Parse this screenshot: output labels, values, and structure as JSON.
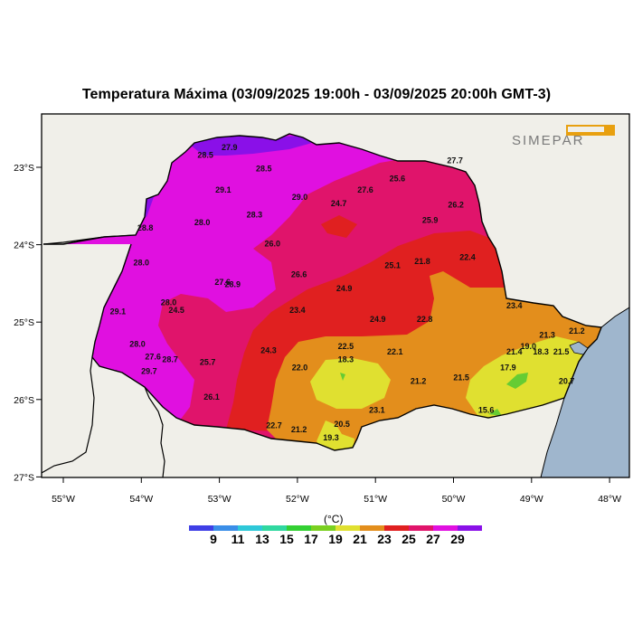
{
  "title": "Temperatura Máxima (03/09/2025 19:00h - 03/09/2025 20:00h GMT-3)",
  "logo_text": "SIMEPAR",
  "colors": {
    "land": "#f0efe9",
    "ocean": "#9fb6cd",
    "c_lt19": "#66cc33",
    "c_19_21": "#e0e030",
    "c_21_23": "#e38e1c",
    "c_23_25": "#e02020",
    "c_25_27": "#e0146b",
    "c_27_29": "#e010e0",
    "c_gt29": "#8a10e8"
  },
  "axes": {
    "lon_ticks": [
      "55°W",
      "54°W",
      "53°W",
      "52°W",
      "51°W",
      "50°W",
      "49°W",
      "48°W"
    ],
    "lat_ticks": [
      "23°S",
      "24°S",
      "25°S",
      "26°S",
      "27°S"
    ]
  },
  "legend": {
    "unit": "(°C)",
    "labels": [
      "9",
      "11",
      "13",
      "15",
      "17",
      "19",
      "21",
      "23",
      "25",
      "27",
      "29"
    ],
    "colors": [
      "#3f3fe6",
      "#3a8ee8",
      "#2ec8d8",
      "#30d8a0",
      "#33d033",
      "#7ad020",
      "#e0e030",
      "#e38e1c",
      "#e02020",
      "#e0146b",
      "#e010e0",
      "#8a10e8"
    ]
  },
  "stations": [
    {
      "value": "27.9",
      "lon": -52.87,
      "lat": -22.78
    },
    {
      "value": "28.5",
      "lon": -53.18,
      "lat": -22.88
    },
    {
      "value": "28.5",
      "lon": -52.43,
      "lat": -23.05
    },
    {
      "value": "27.7",
      "lon": -49.98,
      "lat": -22.95
    },
    {
      "value": "25.6",
      "lon": -50.72,
      "lat": -23.18
    },
    {
      "value": "29.1",
      "lon": -52.95,
      "lat": -23.33
    },
    {
      "value": "27.6",
      "lon": -51.13,
      "lat": -23.33
    },
    {
      "value": "29.0",
      "lon": -51.97,
      "lat": -23.42
    },
    {
      "value": "24.7",
      "lon": -51.47,
      "lat": -23.5
    },
    {
      "value": "26.2",
      "lon": -49.97,
      "lat": -23.52
    },
    {
      "value": "28.3",
      "lon": -52.55,
      "lat": -23.65
    },
    {
      "value": "28.0",
      "lon": -53.22,
      "lat": -23.75
    },
    {
      "value": "25.9",
      "lon": -50.3,
      "lat": -23.72
    },
    {
      "value": "28.8",
      "lon": -53.95,
      "lat": -23.82
    },
    {
      "value": "26.0",
      "lon": -52.32,
      "lat": -24.02
    },
    {
      "value": "28.0",
      "lon": -54.0,
      "lat": -24.27
    },
    {
      "value": "25.1",
      "lon": -50.78,
      "lat": -24.3
    },
    {
      "value": "21.8",
      "lon": -50.4,
      "lat": -24.25
    },
    {
      "value": "22.4",
      "lon": -49.82,
      "lat": -24.2
    },
    {
      "value": "26.6",
      "lon": -51.98,
      "lat": -24.42
    },
    {
      "value": "27.6",
      "lon": -52.96,
      "lat": -24.52
    },
    {
      "value": "28.9",
      "lon": -52.83,
      "lat": -24.55
    },
    {
      "value": "24.9",
      "lon": -51.4,
      "lat": -24.6
    },
    {
      "value": "28.0",
      "lon": -53.65,
      "lat": -24.78
    },
    {
      "value": "23.4",
      "lon": -52.0,
      "lat": -24.88
    },
    {
      "value": "24.5",
      "lon": -53.55,
      "lat": -24.88
    },
    {
      "value": "29.1",
      "lon": -54.3,
      "lat": -24.9
    },
    {
      "value": "23.4",
      "lon": -49.22,
      "lat": -24.82
    },
    {
      "value": "24.9",
      "lon": -50.97,
      "lat": -25.0
    },
    {
      "value": "22.8",
      "lon": -50.37,
      "lat": -25.0
    },
    {
      "value": "28.0",
      "lon": -54.05,
      "lat": -25.32
    },
    {
      "value": "22.5",
      "lon": -51.38,
      "lat": -25.35
    },
    {
      "value": "24.3",
      "lon": -52.37,
      "lat": -25.4
    },
    {
      "value": "22.1",
      "lon": -50.75,
      "lat": -25.42
    },
    {
      "value": "21.3",
      "lon": -48.8,
      "lat": -25.2
    },
    {
      "value": "21.2",
      "lon": -48.42,
      "lat": -25.15
    },
    {
      "value": "19.0",
      "lon": -49.04,
      "lat": -25.35
    },
    {
      "value": "21.4",
      "lon": -49.22,
      "lat": -25.42
    },
    {
      "value": "18.3",
      "lon": -48.88,
      "lat": -25.42
    },
    {
      "value": "21.5",
      "lon": -48.62,
      "lat": -25.42
    },
    {
      "value": "27.6",
      "lon": -53.85,
      "lat": -25.48
    },
    {
      "value": "28.7",
      "lon": -53.63,
      "lat": -25.52
    },
    {
      "value": "18.3",
      "lon": -51.38,
      "lat": -25.52
    },
    {
      "value": "25.7",
      "lon": -53.15,
      "lat": -25.55
    },
    {
      "value": "22.0",
      "lon": -51.97,
      "lat": -25.62
    },
    {
      "value": "29.7",
      "lon": -53.9,
      "lat": -25.67
    },
    {
      "value": "17.9",
      "lon": -49.3,
      "lat": -25.62
    },
    {
      "value": "21.5",
      "lon": -49.9,
      "lat": -25.75
    },
    {
      "value": "21.2",
      "lon": -50.45,
      "lat": -25.8
    },
    {
      "value": "20.7",
      "lon": -48.55,
      "lat": -25.8
    },
    {
      "value": "26.1",
      "lon": -53.1,
      "lat": -26.0
    },
    {
      "value": "23.1",
      "lon": -50.98,
      "lat": -26.17
    },
    {
      "value": "15.6",
      "lon": -49.58,
      "lat": -26.17
    },
    {
      "value": "22.7",
      "lon": -52.3,
      "lat": -26.37
    },
    {
      "value": "20.5",
      "lon": -51.43,
      "lat": -26.35
    },
    {
      "value": "21.2",
      "lon": -51.98,
      "lat": -26.42
    },
    {
      "value": "19.3",
      "lon": -51.57,
      "lat": -26.53
    }
  ]
}
